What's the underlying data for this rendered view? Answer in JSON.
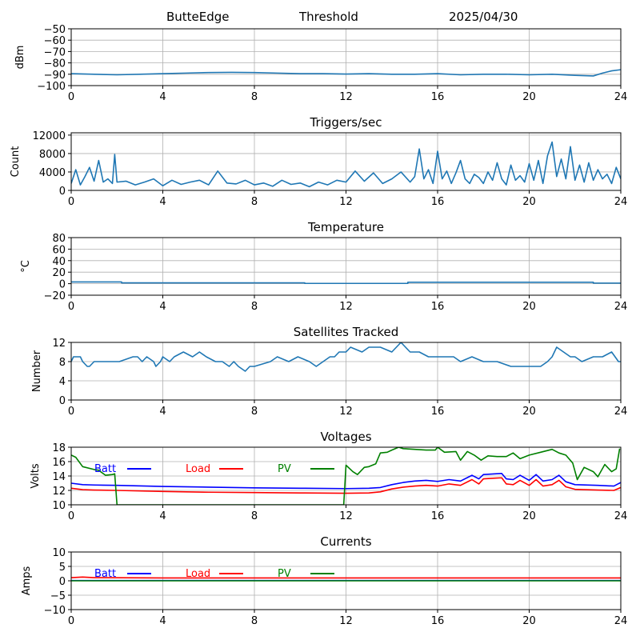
{
  "header": {
    "station": "ButteEdge",
    "mode": "Threshold",
    "date": "2025/04/30"
  },
  "colors": {
    "series_default": "#1f77b4",
    "batt": "#0000ff",
    "load": "#ff0000",
    "pv": "#008000",
    "grid": "#b0b0b0"
  },
  "chart_data": [
    {
      "id": "threshold",
      "type": "line",
      "title": "",
      "xlabel": "",
      "ylabel": "dBm",
      "xlim": [
        0,
        24
      ],
      "ylim": [
        -100,
        -50
      ],
      "xticks": [
        "0",
        "4",
        "8",
        "12",
        "16",
        "20",
        "24"
      ],
      "yticks": [
        "−100",
        "−90",
        "−80",
        "−70",
        "−60",
        "−50"
      ],
      "ytick_values": [
        -100,
        -90,
        -80,
        -70,
        -60,
        -50
      ],
      "grid": true,
      "series": [
        {
          "color": "series_default",
          "x": [
            0,
            1,
            2,
            3,
            4,
            5,
            6,
            7,
            8,
            9,
            10,
            11,
            12,
            13,
            14,
            15,
            16,
            17,
            18,
            19,
            20,
            21,
            22,
            22.8,
            23.2,
            23.6,
            24
          ],
          "y": [
            -89.5,
            -90,
            -90.5,
            -90,
            -89.5,
            -89,
            -88.5,
            -88.3,
            -88.5,
            -89,
            -89.5,
            -89.5,
            -89.8,
            -89.5,
            -90,
            -90,
            -89.5,
            -90.5,
            -90,
            -90,
            -90.5,
            -90,
            -91,
            -91.5,
            -89,
            -87,
            -86
          ]
        }
      ]
    },
    {
      "id": "triggers",
      "type": "line",
      "title": "Triggers/sec",
      "xlabel": "",
      "ylabel": "Count",
      "xlim": [
        0,
        24
      ],
      "ylim": [
        0,
        12500
      ],
      "xticks": [
        "0",
        "4",
        "8",
        "12",
        "16",
        "20",
        "24"
      ],
      "yticks": [
        "0",
        "4000",
        "8000",
        "12000"
      ],
      "ytick_values": [
        0,
        4000,
        8000,
        12000
      ],
      "grid": true,
      "series": [
        {
          "color": "series_default",
          "x": [
            0,
            0.2,
            0.4,
            0.6,
            0.8,
            1.0,
            1.2,
            1.4,
            1.6,
            1.8,
            1.9,
            2.0,
            2.4,
            2.8,
            3.2,
            3.6,
            4.0,
            4.4,
            4.8,
            5.2,
            5.6,
            6.0,
            6.4,
            6.8,
            7.2,
            7.6,
            8.0,
            8.4,
            8.8,
            9.2,
            9.6,
            10.0,
            10.4,
            10.8,
            11.2,
            11.6,
            12.0,
            12.4,
            12.8,
            13.2,
            13.6,
            14.0,
            14.4,
            14.8,
            15.0,
            15.2,
            15.4,
            15.6,
            15.8,
            16.0,
            16.2,
            16.4,
            16.6,
            16.8,
            17.0,
            17.2,
            17.4,
            17.6,
            17.8,
            18.0,
            18.2,
            18.4,
            18.6,
            18.8,
            19.0,
            19.2,
            19.4,
            19.6,
            19.8,
            20.0,
            20.2,
            20.4,
            20.6,
            20.8,
            21.0,
            21.2,
            21.4,
            21.6,
            21.8,
            22.0,
            22.2,
            22.4,
            22.6,
            22.8,
            23.0,
            23.2,
            23.4,
            23.6,
            23.8,
            24.0
          ],
          "y": [
            1500,
            4500,
            1200,
            3000,
            5000,
            2000,
            6500,
            1800,
            2500,
            1500,
            7800,
            1800,
            2000,
            1200,
            1800,
            2500,
            1000,
            2200,
            1300,
            1800,
            2200,
            1200,
            4200,
            1600,
            1400,
            2200,
            1200,
            1600,
            900,
            2200,
            1300,
            1600,
            800,
            1800,
            1200,
            2200,
            1800,
            4200,
            2000,
            3800,
            1500,
            2500,
            4000,
            1800,
            3000,
            9000,
            2500,
            4500,
            1500,
            8500,
            2500,
            4200,
            1500,
            3800,
            6500,
            2500,
            1500,
            3500,
            2800,
            1500,
            4000,
            2200,
            6000,
            2500,
            1200,
            5500,
            2200,
            3200,
            1800,
            5800,
            2200,
            6500,
            1500,
            7500,
            10500,
            3000,
            6800,
            2500,
            9500,
            2200,
            5500,
            1800,
            6000,
            2200,
            4500,
            2500,
            3500,
            1500,
            5000,
            2500
          ]
        }
      ]
    },
    {
      "id": "temperature",
      "type": "line",
      "title": "Temperature",
      "xlabel": "",
      "ylabel": "°C",
      "xlim": [
        0,
        24
      ],
      "ylim": [
        -20,
        80
      ],
      "xticks": [
        "0",
        "4",
        "8",
        "12",
        "16",
        "20",
        "24"
      ],
      "yticks": [
        "−20",
        "0",
        "20",
        "40",
        "60",
        "80"
      ],
      "ytick_values": [
        -20,
        0,
        20,
        40,
        60,
        80
      ],
      "grid": true,
      "series": [
        {
          "color": "series_default",
          "x": [
            0,
            2.2,
            2.2,
            10.2,
            10.2,
            14.7,
            14.7,
            22.8,
            22.8,
            24
          ],
          "y": [
            3,
            3,
            1.5,
            1.5,
            0.5,
            0.5,
            2.5,
            2.5,
            1,
            1
          ]
        }
      ]
    },
    {
      "id": "satellites",
      "type": "line",
      "title": "Satellites Tracked",
      "xlabel": "",
      "ylabel": "Number",
      "xlim": [
        0,
        24
      ],
      "ylim": [
        0,
        12
      ],
      "xticks": [
        "0",
        "4",
        "8",
        "12",
        "16",
        "20",
        "24"
      ],
      "yticks": [
        "0",
        "4",
        "8",
        "12"
      ],
      "ytick_values": [
        0,
        4,
        8,
        12
      ],
      "grid": true,
      "series": [
        {
          "color": "series_default",
          "x": [
            0,
            0.1,
            0.4,
            0.5,
            0.7,
            0.8,
            1.0,
            1.7,
            2.1,
            2.7,
            2.9,
            3.1,
            3.3,
            3.6,
            3.7,
            3.9,
            4.0,
            4.3,
            4.5,
            4.9,
            5.3,
            5.6,
            5.9,
            6.3,
            6.6,
            6.9,
            7.1,
            7.3,
            7.6,
            7.8,
            8.0,
            8.7,
            9.0,
            9.5,
            9.9,
            10.4,
            10.7,
            11.0,
            11.3,
            11.5,
            11.7,
            12.0,
            12.2,
            12.7,
            13.0,
            13.5,
            14.0,
            14.4,
            14.6,
            14.8,
            15.2,
            15.6,
            16.0,
            16.7,
            17.0,
            17.5,
            18.0,
            18.3,
            18.6,
            19.2,
            19.5,
            20.0,
            20.5,
            20.8,
            21.0,
            21.2,
            21.5,
            21.8,
            22.0,
            22.3,
            22.8,
            23.2,
            23.6,
            23.9,
            24.0
          ],
          "y": [
            8,
            9,
            9,
            8,
            7,
            7,
            8,
            8,
            8,
            9,
            9,
            8,
            9,
            8,
            7,
            8,
            9,
            8,
            9,
            10,
            9,
            10,
            9,
            8,
            8,
            7,
            8,
            7,
            6,
            7,
            7,
            8,
            9,
            8,
            9,
            8,
            7,
            8,
            9,
            9,
            10,
            10,
            11,
            10,
            11,
            11,
            10,
            12,
            11,
            10,
            10,
            9,
            9,
            9,
            8,
            9,
            8,
            8,
            8,
            7,
            7,
            7,
            7,
            8,
            9,
            11,
            10,
            9,
            9,
            8,
            9,
            9,
            10,
            8,
            8
          ]
        }
      ]
    },
    {
      "id": "voltages",
      "type": "line",
      "title": "Voltages",
      "xlabel": "",
      "ylabel": "Volts",
      "xlim": [
        0,
        24
      ],
      "ylim": [
        10,
        18
      ],
      "xticks": [
        "0",
        "4",
        "8",
        "12",
        "16",
        "20",
        "24"
      ],
      "yticks": [
        "10",
        "12",
        "14",
        "16",
        "18"
      ],
      "ytick_values": [
        10,
        12,
        14,
        16,
        18
      ],
      "grid": true,
      "legend": [
        "Batt",
        "Load",
        "PV"
      ],
      "series": [
        {
          "name": "Batt",
          "color": "batt",
          "x": [
            0,
            0.5,
            1,
            2,
            4,
            6,
            8,
            10,
            12,
            13,
            13.5,
            14,
            14.5,
            15,
            15.5,
            16,
            16.5,
            17,
            17.5,
            17.8,
            18,
            18.5,
            18.8,
            19,
            19.3,
            19.6,
            20,
            20.3,
            20.6,
            21,
            21.3,
            21.6,
            22,
            23,
            23.7,
            24
          ],
          "y": [
            13,
            12.8,
            12.75,
            12.7,
            12.55,
            12.45,
            12.35,
            12.3,
            12.25,
            12.3,
            12.4,
            12.8,
            13.1,
            13.3,
            13.4,
            13.25,
            13.5,
            13.3,
            14.1,
            13.6,
            14.2,
            14.3,
            14.35,
            13.6,
            13.5,
            14.1,
            13.4,
            14.2,
            13.3,
            13.5,
            14.1,
            13.2,
            12.8,
            12.7,
            12.6,
            13.1
          ]
        },
        {
          "name": "Load",
          "color": "load",
          "x": [
            0,
            0.5,
            1,
            2,
            4,
            6,
            8,
            10,
            12,
            13,
            13.5,
            14,
            14.5,
            15,
            15.5,
            16,
            16.5,
            17,
            17.5,
            17.8,
            18,
            18.5,
            18.8,
            19,
            19.3,
            19.6,
            20,
            20.3,
            20.6,
            21,
            21.3,
            21.6,
            22,
            23,
            23.7,
            24
          ],
          "y": [
            12.3,
            12.1,
            12.05,
            12,
            11.85,
            11.75,
            11.7,
            11.65,
            11.6,
            11.65,
            11.8,
            12.2,
            12.45,
            12.6,
            12.7,
            12.6,
            12.9,
            12.7,
            13.5,
            12.9,
            13.6,
            13.7,
            13.75,
            12.9,
            12.8,
            13.4,
            12.7,
            13.5,
            12.6,
            12.8,
            13.4,
            12.5,
            12.15,
            12.05,
            12,
            12.4
          ]
        },
        {
          "name": "PV",
          "color": "pv",
          "x": [
            0,
            0.2,
            0.5,
            1.0,
            1.2,
            1.5,
            1.8,
            1.9,
            2.0,
            11.9,
            12.0,
            12.3,
            12.5,
            12.8,
            13.0,
            13.3,
            13.5,
            13.8,
            14.0,
            14.3,
            14.5,
            15.0,
            15.5,
            15.9,
            16.0,
            16.3,
            16.8,
            17.0,
            17.3,
            17.6,
            17.9,
            18.2,
            18.6,
            19.0,
            19.3,
            19.6,
            20.0,
            20.5,
            21.0,
            21.3,
            21.6,
            21.9,
            22.1,
            22.4,
            22.8,
            23.0,
            23.3,
            23.6,
            23.8,
            23.95
          ],
          "y": [
            16.9,
            16.6,
            15.3,
            14.9,
            14.8,
            14.1,
            14.2,
            14.3,
            10,
            10,
            15.5,
            14.6,
            14.2,
            15.2,
            15.3,
            15.7,
            17.2,
            17.3,
            17.6,
            18,
            17.8,
            17.7,
            17.6,
            17.6,
            18,
            17.3,
            17.4,
            16.2,
            17.4,
            16.9,
            16.2,
            16.8,
            16.7,
            16.7,
            17.2,
            16.4,
            16.9,
            17.3,
            17.7,
            17.2,
            16.9,
            15.8,
            13.5,
            15.2,
            14.6,
            13.9,
            15.6,
            14.6,
            15.0,
            17.8
          ]
        }
      ]
    },
    {
      "id": "currents",
      "type": "line",
      "title": "Currents",
      "xlabel": "",
      "ylabel": "Amps",
      "xlim": [
        0,
        24
      ],
      "ylim": [
        -10,
        10
      ],
      "xticks": [
        "0",
        "4",
        "8",
        "12",
        "16",
        "20",
        "24"
      ],
      "yticks": [
        "−10",
        "−5",
        "0",
        "5",
        "10"
      ],
      "ytick_values": [
        -10,
        -5,
        0,
        5,
        10
      ],
      "grid": true,
      "legend": [
        "Batt",
        "Load",
        "PV"
      ],
      "series": [
        {
          "name": "Batt",
          "color": "batt",
          "x": [
            0,
            24
          ],
          "y": [
            0.1,
            0.1
          ]
        },
        {
          "name": "Load",
          "color": "load",
          "x": [
            0,
            0.5,
            1,
            4,
            8,
            12,
            16,
            20,
            24
          ],
          "y": [
            1.1,
            1.3,
            1.1,
            1.0,
            1.0,
            1.0,
            1.0,
            1.0,
            1.0
          ]
        },
        {
          "name": "PV",
          "color": "pv",
          "x": [
            0,
            24
          ],
          "y": [
            0,
            0
          ]
        }
      ]
    }
  ]
}
